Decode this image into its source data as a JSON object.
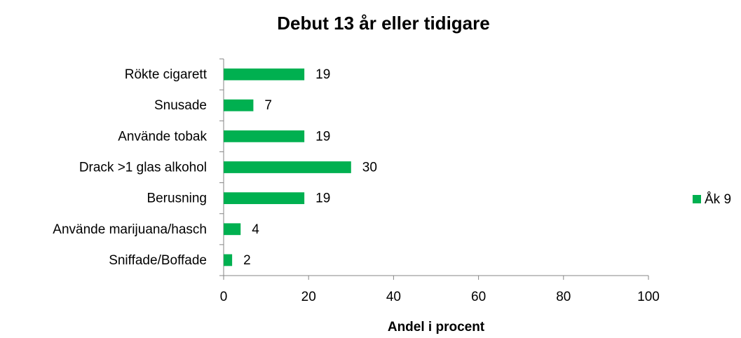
{
  "chart_data": {
    "type": "bar",
    "orientation": "horizontal",
    "title": "Debut 13 år eller tidigare",
    "xlabel": "Andel i procent",
    "categories": [
      "Rökte cigarett",
      "Snusade",
      "Använde tobak",
      "Drack >1 glas alkohol",
      "Berusning",
      "Använde marijuana/hasch",
      "Sniffade/Boffade"
    ],
    "series": [
      {
        "name": "Åk 9",
        "color": "#00b050",
        "values": [
          19,
          7,
          19,
          30,
          19,
          4,
          2
        ]
      }
    ],
    "xlim": [
      0,
      100
    ],
    "xticks": [
      0,
      20,
      40,
      60,
      80,
      100
    ],
    "grid": false,
    "legend": "right"
  }
}
